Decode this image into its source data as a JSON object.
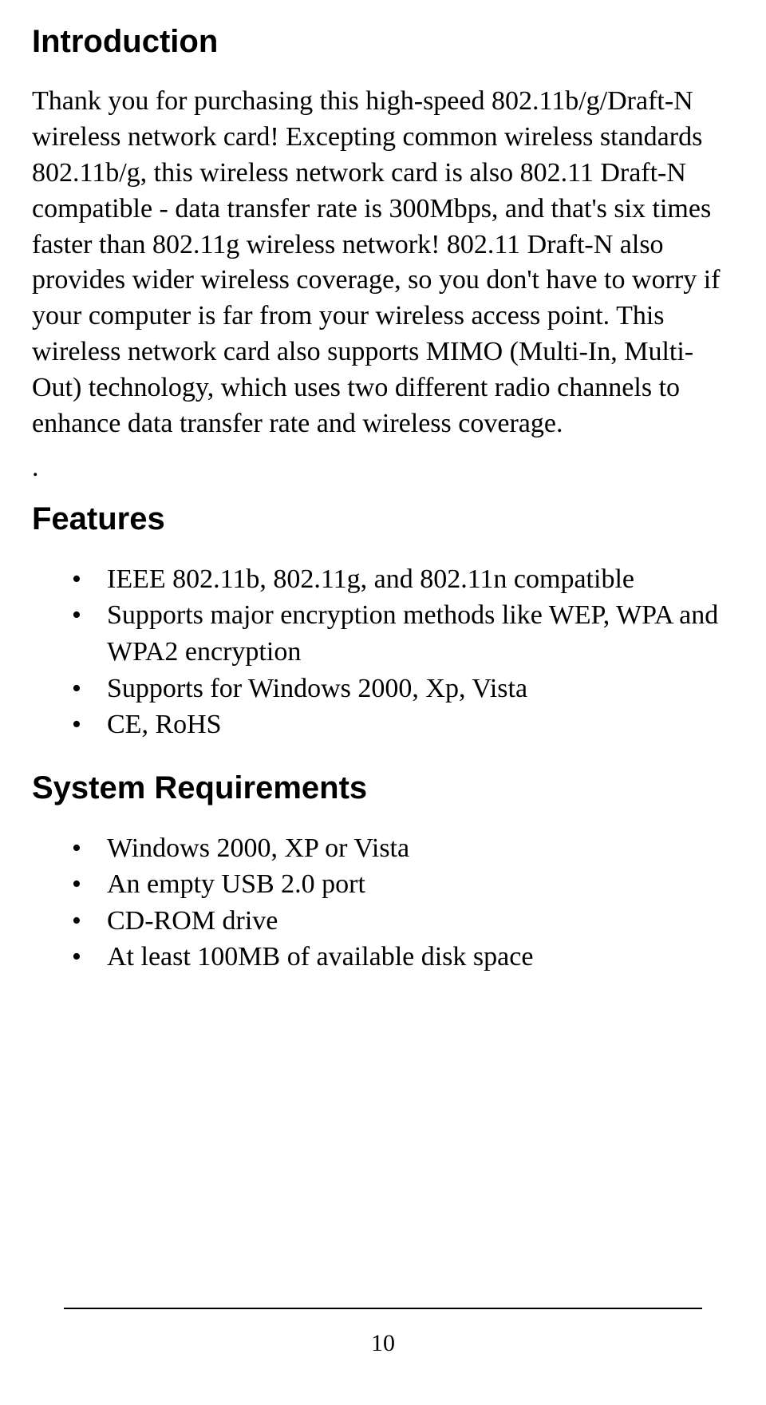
{
  "sections": {
    "intro": {
      "heading": "Introduction",
      "paragraph": "Thank you for purchasing this high-speed 802.11b/g/Draft-N wireless network card! Excepting common wireless standards 802.11b/g, this wireless network card is also 802.11 Draft-N compatible - data transfer rate is 300Mbps, and that's six times faster than 802.11g wireless network! 802.11 Draft-N also provides wider wireless coverage, so you don't have to worry if your computer is far from your wireless access point. This wireless network card also supports MIMO (Multi-In, Multi-Out) technology, which uses two different radio channels to enhance data transfer rate and wireless coverage.",
      "trailing_dot": "."
    },
    "features": {
      "heading": "Features",
      "items": [
        "IEEE 802.11b, 802.11g, and 802.11n compatible",
        "Supports major encryption methods like WEP, WPA and WPA2 encryption",
        "Supports for Windows 2000, Xp, Vista",
        "CE, RoHS"
      ]
    },
    "sysreq": {
      "heading": "System Requirements",
      "items": [
        "Windows 2000, XP or Vista",
        "An empty USB 2.0 port",
        "CD-ROM drive",
        "At least 100MB of available disk space"
      ]
    }
  },
  "page_number": "10",
  "style": {
    "background_color": "#ffffff",
    "text_color": "#000000",
    "rule_color": "#000000",
    "heading_font": "Arial",
    "body_font": "Times New Roman",
    "heading_fontsize": 40,
    "body_fontsize": 34
  }
}
